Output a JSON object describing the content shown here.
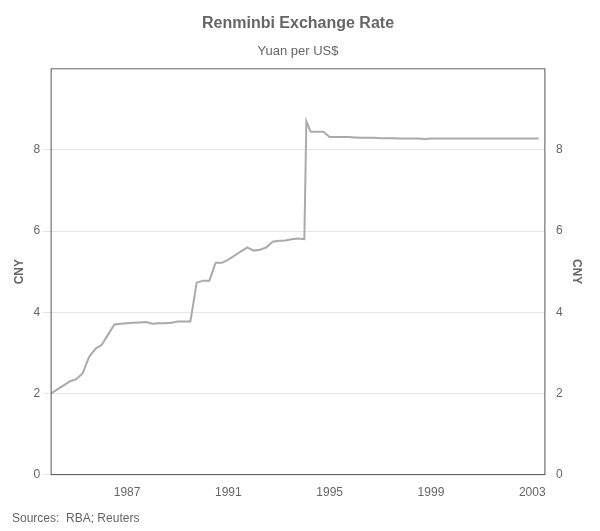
{
  "chart_data": {
    "type": "line",
    "title": "Renminbi Exchange Rate",
    "subtitle": "Yuan per US$",
    "ylabel": "CNY",
    "y2label": "CNY",
    "annotations": [
      "Sources:  RBA; Reuters"
    ],
    "x": [
      1984.0,
      1984.25,
      1984.5,
      1984.75,
      1985.0,
      1985.25,
      1985.5,
      1985.75,
      1986.0,
      1986.25,
      1986.5,
      1986.75,
      1987.0,
      1987.25,
      1987.5,
      1987.75,
      1988.0,
      1988.25,
      1988.5,
      1988.75,
      1989.0,
      1989.25,
      1989.5,
      1989.75,
      1990.0,
      1990.25,
      1990.5,
      1990.75,
      1991.0,
      1991.25,
      1991.5,
      1991.75,
      1992.0,
      1992.25,
      1992.5,
      1992.75,
      1993.0,
      1993.25,
      1993.5,
      1993.75,
      1994.0,
      1994.08,
      1994.25,
      1994.5,
      1994.75,
      1995.0,
      1995.25,
      1995.5,
      1995.75,
      1996.0,
      1996.25,
      1996.5,
      1996.75,
      1997.0,
      1997.25,
      1997.5,
      1997.75,
      1998.0,
      1998.25,
      1998.5,
      1998.75,
      1999.0,
      1999.25,
      1999.5,
      1999.75,
      2000.0,
      2000.25,
      2000.5,
      2000.75,
      2001.0,
      2001.25,
      2001.5,
      2001.75,
      2002.0,
      2002.25,
      2002.5,
      2002.75,
      2003.0,
      2003.25
    ],
    "values": [
      2.0,
      2.1,
      2.2,
      2.3,
      2.35,
      2.5,
      2.9,
      3.1,
      3.2,
      3.45,
      3.7,
      3.72,
      3.73,
      3.74,
      3.75,
      3.76,
      3.72,
      3.73,
      3.73,
      3.74,
      3.77,
      3.77,
      3.77,
      4.73,
      4.78,
      4.78,
      5.22,
      5.22,
      5.3,
      5.4,
      5.5,
      5.6,
      5.52,
      5.54,
      5.6,
      5.74,
      5.76,
      5.77,
      5.8,
      5.82,
      5.8,
      8.7,
      8.45,
      8.45,
      8.45,
      8.32,
      8.32,
      8.32,
      8.32,
      8.31,
      8.3,
      8.3,
      8.3,
      8.29,
      8.29,
      8.29,
      8.28,
      8.28,
      8.28,
      8.28,
      8.27,
      8.28,
      8.28,
      8.28,
      8.28,
      8.28,
      8.28,
      8.28,
      8.28,
      8.28,
      8.28,
      8.28,
      8.28,
      8.28,
      8.28,
      8.28,
      8.28,
      8.28,
      8.28
    ],
    "color": "#aaaaaa",
    "xlim": [
      1984.0,
      2003.5
    ],
    "xticks": [
      1987,
      1991,
      1995,
      1999,
      2003
    ],
    "ylim": [
      0,
      10
    ],
    "yticks": [
      0,
      2,
      4,
      6,
      8
    ],
    "y2lim": [
      0,
      10
    ],
    "y2ticks": [
      0,
      2,
      4,
      6,
      8
    ],
    "grid": "y"
  }
}
